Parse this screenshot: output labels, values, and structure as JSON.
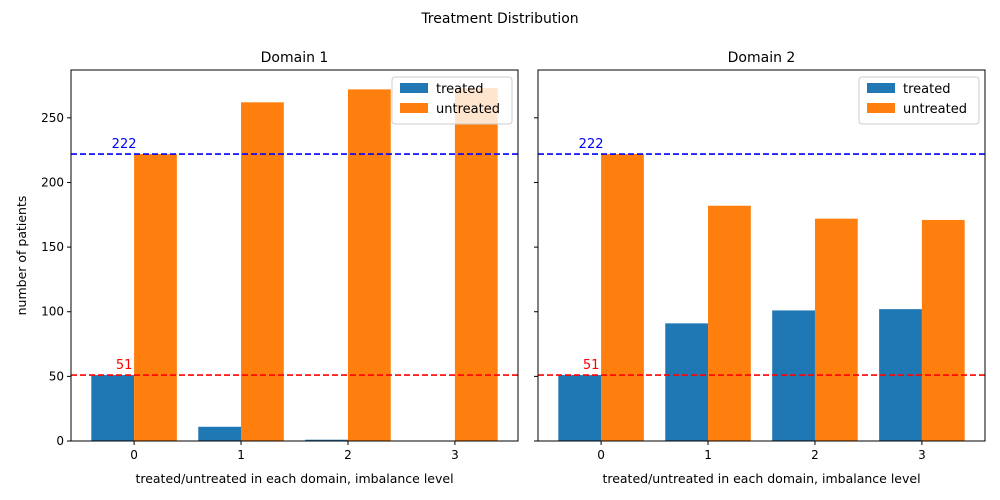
{
  "figure": {
    "suptitle": "Treatment Distribution"
  },
  "chart_data": [
    {
      "type": "bar",
      "title": "Domain 1",
      "xlabel": "treated/untreated in each domain, imbalance level",
      "ylabel": "number of patients",
      "categories": [
        "0",
        "1",
        "2",
        "3"
      ],
      "ylim": [
        0,
        287
      ],
      "yticks": [
        0,
        50,
        100,
        150,
        200,
        250
      ],
      "series": [
        {
          "name": "treated",
          "color": "#1f77b4",
          "values": [
            51,
            11,
            1,
            0
          ]
        },
        {
          "name": "untreated",
          "color": "#ff7f0e",
          "values": [
            222,
            262,
            272,
            273
          ]
        }
      ],
      "hlines": [
        {
          "value": 222,
          "label": "222",
          "color": "#0000ff"
        },
        {
          "value": 51,
          "label": "51",
          "color": "#ff0000"
        }
      ],
      "legend": "top-right",
      "grid": false
    },
    {
      "type": "bar",
      "title": "Domain 2",
      "xlabel": "treated/untreated in each domain, imbalance level",
      "ylabel": "",
      "categories": [
        "0",
        "1",
        "2",
        "3"
      ],
      "ylim": [
        0,
        287
      ],
      "yticks": [
        0,
        50,
        100,
        150,
        200,
        250
      ],
      "series": [
        {
          "name": "treated",
          "color": "#1f77b4",
          "values": [
            51,
            91,
            101,
            102
          ]
        },
        {
          "name": "untreated",
          "color": "#ff7f0e",
          "values": [
            222,
            182,
            172,
            171
          ]
        }
      ],
      "hlines": [
        {
          "value": 222,
          "label": "222",
          "color": "#0000ff"
        },
        {
          "value": 51,
          "label": "51",
          "color": "#ff0000"
        }
      ],
      "legend": "top-right",
      "grid": false
    }
  ]
}
